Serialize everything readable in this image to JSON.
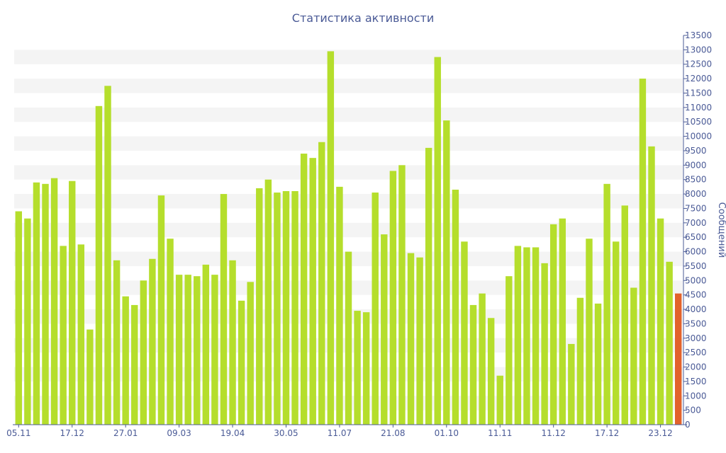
{
  "chart_data": {
    "type": "bar",
    "title": "Статистика активности",
    "xlabel": "",
    "ylabel": "Сообщений",
    "ylim": [
      0,
      13500
    ],
    "ytick_step": 500,
    "grid": "alternating horizontal bands",
    "y_axis_side": "right",
    "xtick_labels": [
      {
        "index": 0,
        "label": "05.11"
      },
      {
        "index": 6,
        "label": "17.12"
      },
      {
        "index": 12,
        "label": "27.01"
      },
      {
        "index": 18,
        "label": "09.03"
      },
      {
        "index": 24,
        "label": "19.04"
      },
      {
        "index": 30,
        "label": "30.05"
      },
      {
        "index": 36,
        "label": "11.07"
      },
      {
        "index": 42,
        "label": "21.08"
      },
      {
        "index": 48,
        "label": "01.10"
      },
      {
        "index": 54,
        "label": "11.11"
      },
      {
        "index": 60,
        "label": "11.12"
      },
      {
        "index": 66,
        "label": "17.12"
      },
      {
        "index": 72,
        "label": "23.12"
      }
    ],
    "colors": {
      "bar": "#b5de2c",
      "last_bar": "#e2622b",
      "axis": "#4a5a96",
      "band": "#f4f4f4"
    },
    "values": [
      7400,
      7150,
      8400,
      8350,
      8550,
      6200,
      8450,
      6250,
      3300,
      11050,
      11750,
      5700,
      4450,
      4150,
      5000,
      5750,
      7950,
      6450,
      5200,
      5200,
      5150,
      5550,
      5200,
      8000,
      5700,
      4300,
      4950,
      8200,
      8500,
      8050,
      8100,
      8100,
      9400,
      9250,
      9800,
      12950,
      8250,
      6000,
      3950,
      3900,
      8050,
      6600,
      8800,
      9000,
      5950,
      5800,
      9600,
      12750,
      10550,
      8150,
      6350,
      4150,
      4550,
      3700,
      1700,
      5150,
      6200,
      6150,
      6150,
      5600,
      6950,
      7150,
      2800,
      4400,
      6450,
      4200,
      8350,
      6350,
      7600,
      4750,
      12000,
      9650,
      7150,
      5650,
      4550
    ]
  }
}
